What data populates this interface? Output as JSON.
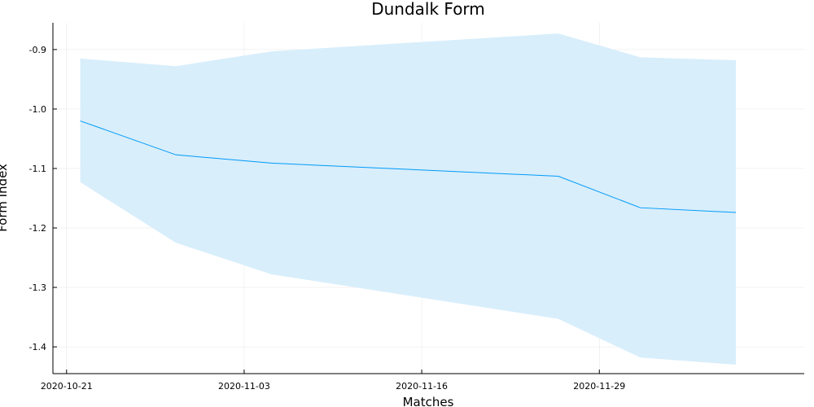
{
  "chart_data": {
    "type": "line",
    "title": "Dundalk Form",
    "xlabel": "Matches",
    "ylabel": "Form Index",
    "x_ticks": [
      "2020-10-21",
      "2020-11-03",
      "2020-11-16",
      "2020-11-29"
    ],
    "y_ticks": [
      "-0.9",
      "-1.0",
      "-1.1",
      "-1.2",
      "-1.3",
      "-1.4"
    ],
    "xlim": [
      "2020-10-20",
      "2020-12-14"
    ],
    "ylim": [
      -1.445,
      -0.855
    ],
    "grid": true,
    "legend": "none",
    "series": [
      {
        "x": [
          "2020-10-22",
          "2020-10-29",
          "2020-11-05",
          "2020-11-26",
          "2020-12-02",
          "2020-12-09"
        ],
        "values": [
          -1.02,
          -1.077,
          -1.091,
          -1.113,
          -1.166,
          -1.174
        ],
        "lower": [
          -1.123,
          -1.225,
          -1.278,
          -1.353,
          -1.418,
          -1.43
        ],
        "upper": [
          -0.915,
          -0.928,
          -0.903,
          -0.873,
          -0.913,
          -0.918
        ],
        "color": "#009AFA",
        "band_color": "#D8EEFB"
      }
    ]
  }
}
